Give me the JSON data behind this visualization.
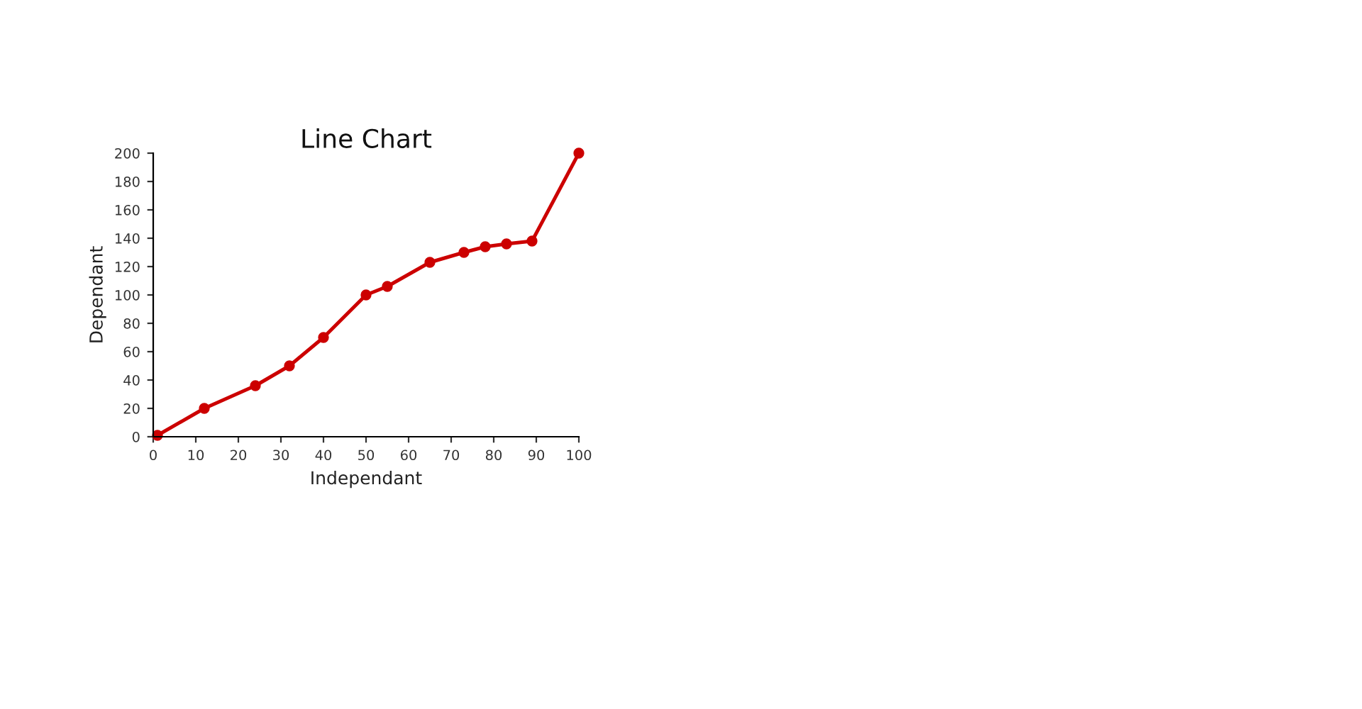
{
  "chart_data": {
    "type": "line",
    "title": "Line Chart",
    "xlabel": "Independant",
    "ylabel": "Dependant",
    "x": [
      1,
      12,
      24,
      32,
      40,
      50,
      55,
      65,
      73,
      78,
      83,
      89,
      100
    ],
    "series": [
      {
        "color": "#cc0000",
        "values": [
          1,
          20,
          36,
          50,
          70,
          100,
          106,
          123,
          130,
          134,
          136,
          138,
          200
        ]
      }
    ],
    "xlim": [
      0,
      100
    ],
    "xticks": [
      0,
      10,
      20,
      30,
      40,
      50,
      60,
      70,
      80,
      90,
      100
    ],
    "ylim": [
      0,
      200
    ],
    "yticks": [
      0,
      20,
      40,
      60,
      80,
      100,
      120,
      140,
      160,
      180,
      200
    ],
    "grid": false,
    "legend": false,
    "marker": "circle",
    "line_style": "solid"
  }
}
